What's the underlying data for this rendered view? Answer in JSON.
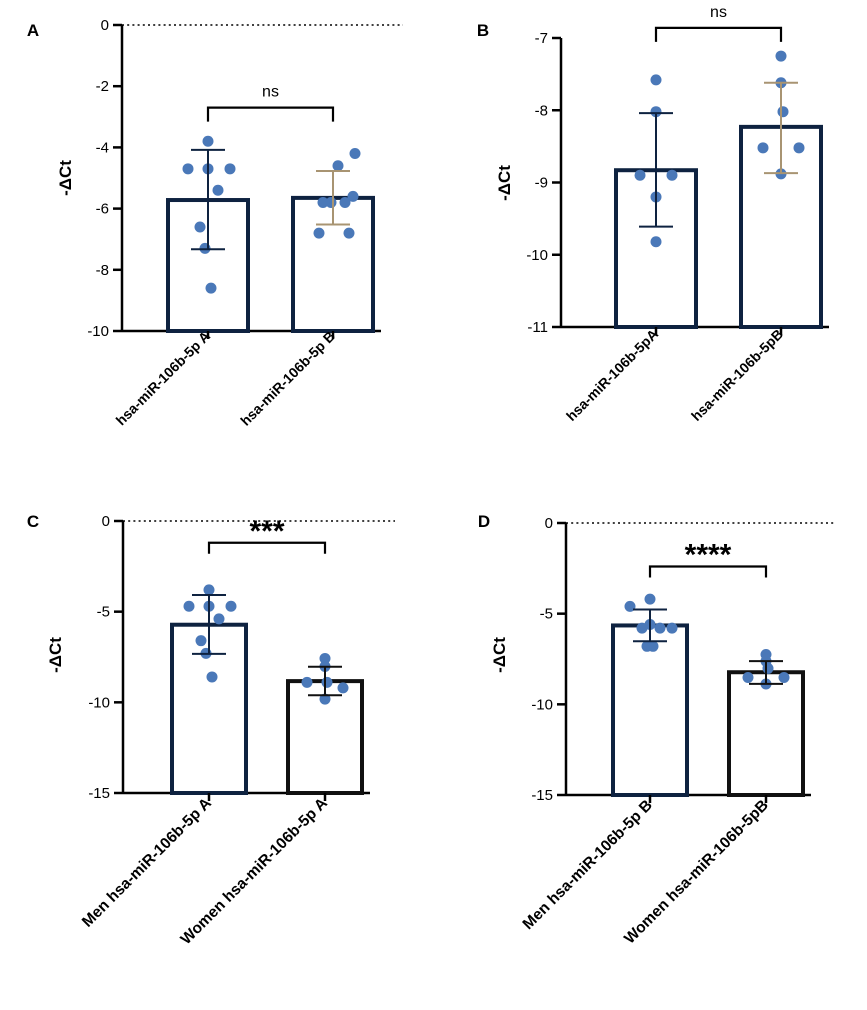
{
  "chart_data": [
    {
      "panel": "A",
      "type": "bar",
      "ylabel": "-ΔCt",
      "ylim": [
        -10,
        0
      ],
      "yticks": [
        0,
        -2,
        -4,
        -6,
        -8,
        -10
      ],
      "zero_line": "dotted",
      "categories": [
        "hsa-miR-106b-5p A",
        "hsa-miR-106b-5p B"
      ],
      "bars": [
        {
          "mean": -5.72,
          "sd_low": -7.33,
          "sd_high": -4.08,
          "outline": "#0e2240",
          "errorbar": "#0e2240",
          "points": [
            -3.8,
            -4.7,
            -4.7,
            -4.7,
            -5.4,
            -6.6,
            -7.3,
            -8.6
          ]
        },
        {
          "mean": -5.65,
          "sd_low": -6.52,
          "sd_high": -4.77,
          "outline": "#0e2240",
          "errorbar": "#a89472",
          "points": [
            -4.2,
            -4.6,
            -5.6,
            -5.8,
            -5.8,
            -5.8,
            -6.8,
            -6.8
          ]
        }
      ],
      "comparison": {
        "label": "ns",
        "from": 0,
        "to": 1,
        "y": -2.7
      },
      "point_color": "#4a78b8"
    },
    {
      "panel": "B",
      "type": "bar",
      "ylabel": "-ΔCt",
      "ylim": [
        -11,
        -7
      ],
      "yticks": [
        -7,
        -8,
        -9,
        -10,
        -11
      ],
      "zero_line": "none",
      "categories": [
        "hsa-miR-106b-5pA",
        "hsa-miR-106b-5pB"
      ],
      "bars": [
        {
          "mean": -8.83,
          "sd_low": -9.61,
          "sd_high": -8.04,
          "outline": "#0e2240",
          "errorbar": "#0e2240",
          "points": [
            -7.58,
            -8.02,
            -8.9,
            -8.9,
            -9.2,
            -9.82
          ]
        },
        {
          "mean": -8.23,
          "sd_low": -8.87,
          "sd_high": -7.62,
          "outline": "#0e2240",
          "errorbar": "#a89472",
          "points": [
            -7.25,
            -7.62,
            -8.02,
            -8.52,
            -8.52,
            -8.88
          ]
        }
      ],
      "comparison": {
        "label": "ns",
        "from": 0,
        "to": 1,
        "y": -6.86
      },
      "point_color": "#4a78b8"
    },
    {
      "panel": "C",
      "type": "bar",
      "ylabel": "-ΔCt",
      "ylim": [
        -15,
        0
      ],
      "yticks": [
        0,
        -5,
        -10,
        -15
      ],
      "zero_line": "dotted",
      "categories": [
        "Men hsa-miR-106b-5p A",
        "Women hsa-miR-106b-5p A"
      ],
      "bars": [
        {
          "mean": -5.72,
          "sd_low": -7.33,
          "sd_high": -4.08,
          "outline": "#0e2240",
          "errorbar": "#0e2240",
          "points": [
            -3.8,
            -4.7,
            -4.7,
            -4.7,
            -5.4,
            -6.6,
            -7.3,
            -8.6
          ]
        },
        {
          "mean": -8.83,
          "sd_low": -9.61,
          "sd_high": -8.04,
          "outline": "#111111",
          "errorbar": "#111111",
          "points": [
            -7.58,
            -8.02,
            -8.9,
            -8.9,
            -9.2,
            -9.82
          ]
        }
      ],
      "comparison": {
        "label": "***",
        "from": 0,
        "to": 1,
        "y": -1.2
      },
      "point_color": "#4a78b8"
    },
    {
      "panel": "D",
      "type": "bar",
      "ylabel": "-ΔCt",
      "ylim": [
        -15,
        0
      ],
      "yticks": [
        0,
        -5,
        -10,
        -15
      ],
      "zero_line": "dotted",
      "categories": [
        "Men hsa-miR-106b-5p B",
        "Women hsa-miR-106b-5pB"
      ],
      "bars": [
        {
          "mean": -5.65,
          "sd_low": -6.52,
          "sd_high": -4.77,
          "outline": "#0e2240",
          "errorbar": "#0e2240",
          "points": [
            -4.2,
            -4.6,
            -5.6,
            -5.8,
            -5.8,
            -5.8,
            -6.8,
            -6.8
          ]
        },
        {
          "mean": -8.23,
          "sd_low": -8.87,
          "sd_high": -7.62,
          "outline": "#111111",
          "errorbar": "#111111",
          "points": [
            -7.25,
            -7.62,
            -8.02,
            -8.52,
            -8.52,
            -8.88
          ]
        }
      ],
      "comparison": {
        "label": "****",
        "from": 0,
        "to": 1,
        "y": -2.4
      },
      "point_color": "#4a78b8"
    }
  ]
}
